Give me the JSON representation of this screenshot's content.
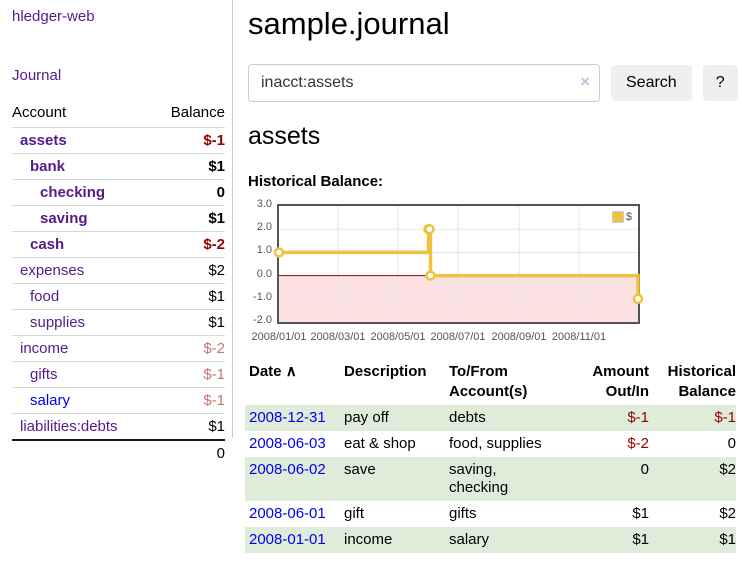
{
  "colors": {
    "link_purple": "#551A8B",
    "link_blue": "#0000EE",
    "negative_dark_red": "#990000",
    "negative_light_red": "#C47777",
    "row_stripe_green": "#DFECDA",
    "chart_line_gold": "#EDC240",
    "chart_negative_region_pink": "#FCE2E2",
    "chart_zero_line_red": "#990000",
    "chart_border_gray": "#545454"
  },
  "sidebar": {
    "brand": "hledger-web",
    "journal_label": "Journal",
    "accounts_table": {
      "headers": {
        "account": "Account",
        "balance": "Balance"
      },
      "rows": [
        {
          "name": "assets",
          "balance": "$-1",
          "indent": 1,
          "bold": true,
          "negative": true,
          "blue": false
        },
        {
          "name": "bank",
          "balance": "$1",
          "indent": 2,
          "bold": true,
          "negative": false,
          "blue": false
        },
        {
          "name": "checking",
          "balance": "0",
          "indent": 3,
          "bold": true,
          "negative": false,
          "blue": false
        },
        {
          "name": "saving",
          "balance": "$1",
          "indent": 3,
          "bold": true,
          "negative": false,
          "blue": false
        },
        {
          "name": "cash",
          "balance": "$-2",
          "indent": 2,
          "bold": true,
          "negative": true,
          "blue": false
        },
        {
          "name": "expenses",
          "balance": "$2",
          "indent": 1,
          "bold": false,
          "negative": false,
          "blue": false
        },
        {
          "name": "food",
          "balance": "$1",
          "indent": 2,
          "bold": false,
          "negative": false,
          "blue": false
        },
        {
          "name": "supplies",
          "balance": "$1",
          "indent": 2,
          "bold": false,
          "negative": false,
          "blue": false
        },
        {
          "name": "income",
          "balance": "$-2",
          "indent": 1,
          "bold": false,
          "negative": true,
          "blue": false
        },
        {
          "name": "gifts",
          "balance": "$-1",
          "indent": 2,
          "bold": false,
          "negative": true,
          "blue": false
        },
        {
          "name": "salary",
          "balance": "$-1",
          "indent": 2,
          "bold": false,
          "negative": true,
          "blue": true
        },
        {
          "name": "liabilities:debts",
          "balance": "$1",
          "indent": 1,
          "bold": false,
          "negative": false,
          "blue": false
        }
      ],
      "total": "0"
    }
  },
  "header": {
    "title": "sample.journal"
  },
  "search": {
    "value": "inacct:assets",
    "clear_icon": "×",
    "button_label": "Search",
    "help_label": "?"
  },
  "register": {
    "heading": "assets",
    "chart_label": "Historical Balance:"
  },
  "chart_data": {
    "type": "line",
    "step": true,
    "title": "Historical Balance",
    "legend": "$",
    "legend_position": "top-right",
    "grid": true,
    "x_range": [
      "2008-01-01",
      "2008-12-31"
    ],
    "ylim": [
      -2.0,
      3.0
    ],
    "yticks": [
      "3.0",
      "2.0",
      "1.0",
      "0.0",
      "-1.0",
      "-2.0"
    ],
    "ytick_values": [
      3,
      2,
      1,
      0,
      -1,
      -2
    ],
    "xticks": [
      "2008/01/01",
      "2008/03/01",
      "2008/05/01",
      "2008/07/01",
      "2008/09/01",
      "2008/11/01"
    ],
    "series": [
      {
        "name": "$",
        "color": "#EDC240",
        "points": [
          [
            "2008-01-01",
            1
          ],
          [
            "2008-06-01",
            2
          ],
          [
            "2008-06-02",
            2
          ],
          [
            "2008-06-03",
            0
          ],
          [
            "2008-12-31",
            -1
          ]
        ]
      }
    ]
  },
  "transactions": {
    "headers": {
      "date": "Date",
      "sort_icon": "∧",
      "description": "Description",
      "accounts": "To/From Account(s)",
      "amount": "Amount Out/In",
      "balance": "Historical Balance"
    },
    "rows": [
      {
        "date": "2008-12-31",
        "description": "pay off",
        "accounts": "debts",
        "amount": "$-1",
        "balance": "$-1",
        "amount_negative": true,
        "balance_negative": true
      },
      {
        "date": "2008-06-03",
        "description": "eat & shop",
        "accounts": "food, supplies",
        "amount": "$-2",
        "balance": "0",
        "amount_negative": true,
        "balance_negative": false
      },
      {
        "date": "2008-06-02",
        "description": "save",
        "accounts": "saving, checking",
        "amount": "0",
        "balance": "$2",
        "amount_negative": false,
        "balance_negative": false
      },
      {
        "date": "2008-06-01",
        "description": "gift",
        "accounts": "gifts",
        "amount": "$1",
        "balance": "$2",
        "amount_negative": false,
        "balance_negative": false
      },
      {
        "date": "2008-01-01",
        "description": "income",
        "accounts": "salary",
        "amount": "$1",
        "balance": "$1",
        "amount_negative": false,
        "balance_negative": false
      }
    ]
  }
}
